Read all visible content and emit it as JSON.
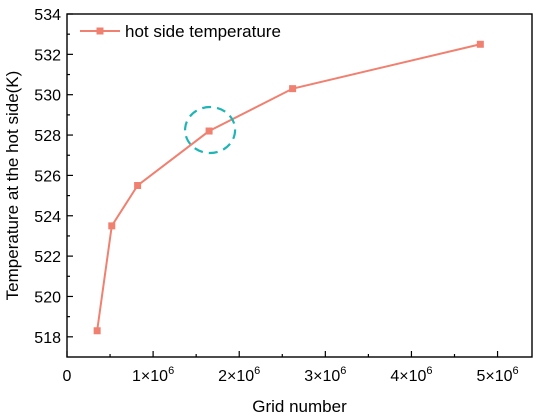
{
  "chart_data": {
    "type": "line",
    "x_label": "Grid number",
    "y_label": "Temperature at the hot side(K)",
    "x_ticks": [
      {
        "value": 0,
        "label": "0",
        "exp": ""
      },
      {
        "value": 1000000,
        "label": "1×10",
        "exp": "6"
      },
      {
        "value": 2000000,
        "label": "2×10",
        "exp": "6"
      },
      {
        "value": 3000000,
        "label": "3×10",
        "exp": "6"
      },
      {
        "value": 4000000,
        "label": "4×10",
        "exp": "6"
      },
      {
        "value": 5000000,
        "label": "5×10",
        "exp": "6"
      }
    ],
    "y_ticks": [
      "518",
      "520",
      "522",
      "524",
      "526",
      "528",
      "530",
      "532",
      "534"
    ],
    "xlim": [
      0,
      5400000
    ],
    "ylim": [
      517,
      534
    ],
    "series": [
      {
        "name": "hot side temperature",
        "color": "#f08070",
        "marker": "square",
        "x": [
          350000,
          520000,
          820000,
          1650000,
          2620000,
          4800000
        ],
        "y": [
          518.3,
          523.5,
          525.5,
          528.2,
          530.3,
          532.5
        ]
      }
    ],
    "legend_position": "top-left",
    "highlight": {
      "type": "dashed-circle",
      "color": "#1fb5b5",
      "x": 1650000,
      "y": 528.2
    }
  }
}
